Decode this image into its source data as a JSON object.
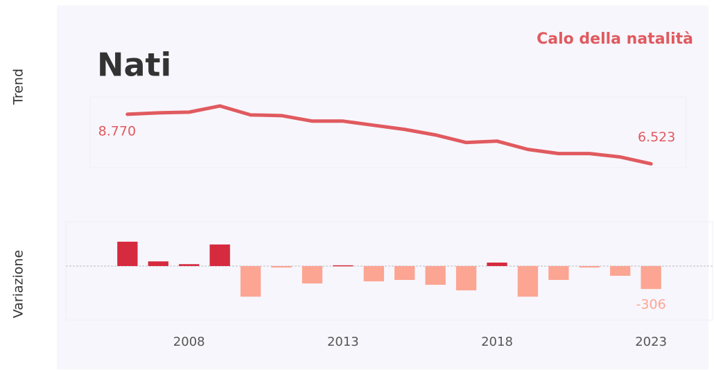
{
  "chart_data": [
    {
      "type": "line",
      "title": "Nati",
      "subtitle": "Calo della natalità",
      "ylabel": "Trend",
      "x": [
        2006,
        2007,
        2008,
        2009,
        2010,
        2011,
        2012,
        2013,
        2014,
        2015,
        2016,
        2017,
        2018,
        2019,
        2020,
        2021,
        2022,
        2023
      ],
      "series": [
        {
          "color": "#e05a5f",
          "values": [
            8770,
            8832,
            8864,
            9145,
            8739,
            8708,
            8458,
            8458,
            8270,
            8083,
            7833,
            7490,
            7552,
            7178,
            6990,
            6990,
            6834,
            6523
          ],
          "value_labels": [
            "8.770",
            null,
            null,
            null,
            null,
            null,
            null,
            null,
            null,
            null,
            null,
            null,
            null,
            null,
            null,
            null,
            null,
            "6.523"
          ]
        }
      ],
      "xlim": [
        2004,
        2025
      ],
      "ylim": [
        6350,
        9550
      ]
    },
    {
      "type": "bar",
      "ylabel": "Variazione",
      "x": [
        2006,
        2007,
        2008,
        2009,
        2010,
        2011,
        2012,
        2013,
        2014,
        2015,
        2016,
        2017,
        2018,
        2019,
        2020,
        2021,
        2022,
        2023
      ],
      "values": [
        324,
        62,
        25,
        287,
        -408,
        -20,
        -232,
        10,
        -204,
        -185,
        -250,
        -324,
        46,
        -408,
        -185,
        -20,
        -130,
        -306
      ],
      "value_labels": [
        null,
        null,
        null,
        null,
        null,
        null,
        null,
        null,
        null,
        null,
        null,
        null,
        null,
        null,
        null,
        null,
        null,
        "-306"
      ],
      "color_positive": "#d62a3e",
      "color_negative": "#fca593",
      "xlim": [
        2004,
        2025
      ],
      "ylim": [
        -720,
        590
      ],
      "xticks": [
        2008,
        2013,
        2018,
        2023
      ]
    }
  ]
}
